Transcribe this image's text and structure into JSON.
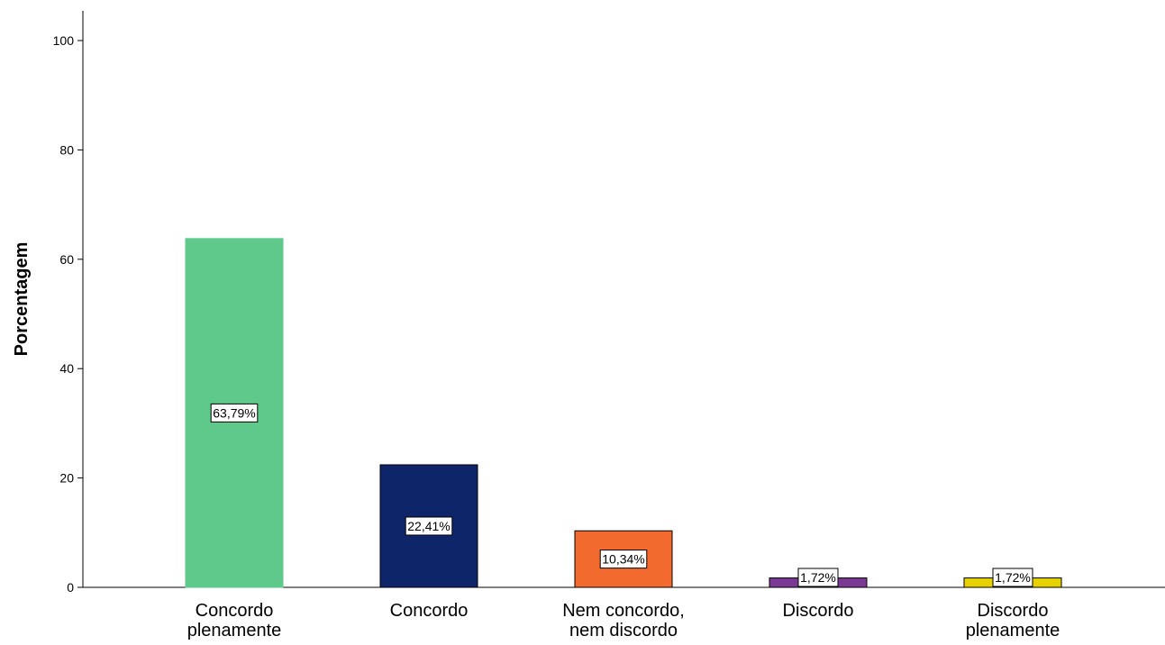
{
  "chart_data": {
    "type": "bar",
    "title": "",
    "xlabel": "",
    "ylabel": "Porcentagem",
    "ylim": [
      0,
      100
    ],
    "yticks": [
      0,
      20,
      40,
      60,
      80,
      100
    ],
    "grid": false,
    "categories": [
      [
        "Concordo",
        "plenamente"
      ],
      [
        "Concordo"
      ],
      [
        "Nem concordo,",
        "nem discordo"
      ],
      [
        "Discordo"
      ],
      [
        "Discordo",
        "plenamente"
      ]
    ],
    "values": [
      63.79,
      22.41,
      10.34,
      1.72,
      1.72
    ],
    "data_labels": [
      "63,79%",
      "22,41%",
      "10,34%",
      "1,72%",
      "1,72%"
    ],
    "colors": [
      "#5ec98a",
      "#0f2569",
      "#f26a2e",
      "#7a3a93",
      "#e6d200"
    ]
  }
}
